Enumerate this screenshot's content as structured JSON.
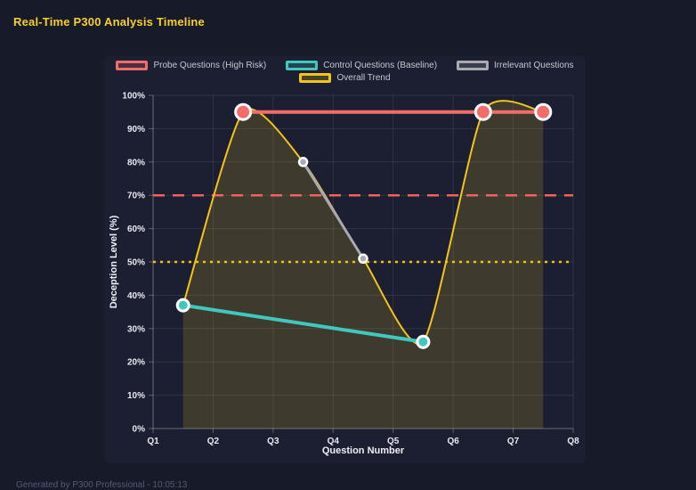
{
  "page": {
    "title": "Real-Time P300 Analysis Timeline",
    "footer": "Generated by P300 Professional - 10:05:13"
  },
  "colors": {
    "page_bg": "#171a29",
    "panel_bg": "#1c1f31",
    "title_yellow": "#f7d028"
  },
  "chart_data": {
    "type": "line",
    "title": "Real-Time P300 Analysis Timeline",
    "xlabel": "Question Number",
    "ylabel": "Deception Level (%)",
    "x_ticks": [
      "Q1",
      "Q2",
      "Q3",
      "Q4",
      "Q5",
      "Q6",
      "Q7",
      "Q8"
    ],
    "x_range": [
      1,
      8
    ],
    "ylim": [
      0,
      100
    ],
    "y_tick_values": [
      0,
      10,
      20,
      30,
      40,
      50,
      60,
      70,
      80,
      90,
      100
    ],
    "y_tick_labels": [
      "0%",
      "10%",
      "20%",
      "30%",
      "40%",
      "50%",
      "60%",
      "70%",
      "80%",
      "90%",
      "100%"
    ],
    "grid": true,
    "grid_color": "rgba(255,255,255,0.09)",
    "axis_color": "rgba(255,255,255,0.28)",
    "legend_position": "top",
    "series": [
      {
        "id": "probe",
        "name": "Probe Questions (High Risk)",
        "color": "#f36c6c",
        "smooth": false,
        "points": [
          [
            2.5,
            95
          ],
          [
            6.5,
            95
          ],
          [
            7.5,
            95
          ]
        ],
        "line_width": 4,
        "point_radius": 8.5,
        "point_stroke": 3,
        "legend_row": 1
      },
      {
        "id": "control",
        "name": "Control Questions (Baseline)",
        "color": "#40c8bf",
        "smooth": false,
        "points": [
          [
            1.5,
            37
          ],
          [
            5.5,
            26
          ]
        ],
        "line_width": 4,
        "point_radius": 6.5,
        "point_stroke": 3,
        "legend_row": 1
      },
      {
        "id": "irrelevant",
        "name": "Irrelevant Questions",
        "color": "#a9a9b2",
        "smooth": false,
        "points": [
          [
            3.5,
            80
          ],
          [
            4.5,
            51
          ]
        ],
        "line_width": 3,
        "point_radius": 4.5,
        "point_stroke": 2.5,
        "legend_row": 1
      },
      {
        "id": "trend",
        "name": "Overall Trend",
        "color": "#f3c51a",
        "smooth": true,
        "points": [
          [
            1.5,
            37
          ],
          [
            2.5,
            95
          ],
          [
            3.5,
            80
          ],
          [
            4.5,
            51
          ],
          [
            5.5,
            26
          ],
          [
            6.5,
            95
          ],
          [
            7.5,
            95
          ]
        ],
        "line_width": 2,
        "point_radius": 0,
        "point_stroke": 0,
        "fill": true,
        "fill_color": "rgba(245,197,24,0.16)",
        "legend_row": 2
      }
    ],
    "thresholds": [
      {
        "value": 70,
        "color": "#f0625f",
        "dash": [
          13,
          9
        ],
        "width": 2.5
      },
      {
        "value": 50,
        "color": "#f1c40f",
        "dash": [
          3,
          5
        ],
        "width": 2.5
      }
    ],
    "draw_order": [
      "trend",
      "irrelevant",
      "control",
      "probe"
    ]
  }
}
